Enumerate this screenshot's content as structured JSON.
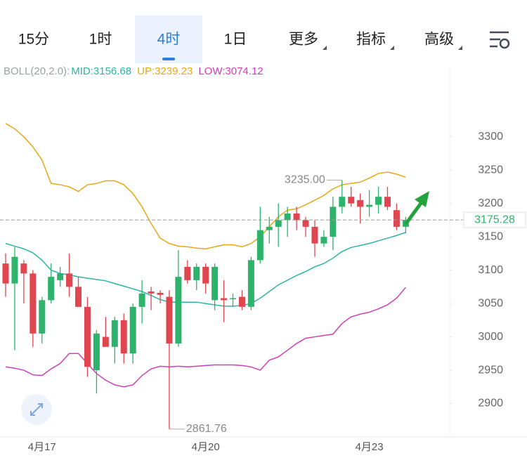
{
  "tabs": [
    {
      "label": "15分"
    },
    {
      "label": "1时"
    },
    {
      "label": "4时",
      "selected": true
    },
    {
      "label": "1日"
    },
    {
      "label": "更多",
      "menu": true
    },
    {
      "label": "指标",
      "menu": true
    },
    {
      "label": "高级",
      "menu": true
    }
  ],
  "indicator": {
    "name": "BOLL(20,2.0):",
    "items": [
      {
        "label": "MID:3156.68",
        "color": "#2bb5a6"
      },
      {
        "label": "UP:3239.23",
        "color": "#e6a817"
      },
      {
        "label": "LOW:3074.12",
        "color": "#cc3fb8"
      }
    ]
  },
  "chart_data": {
    "type": "candlestick",
    "categories": [
      null,
      null,
      null,
      null,
      "4月17",
      null,
      null,
      null,
      null,
      null,
      null,
      null,
      null,
      null,
      null,
      null,
      null,
      null,
      null,
      null,
      null,
      null,
      "4月20",
      null,
      null,
      null,
      null,
      null,
      null,
      null,
      null,
      null,
      null,
      null,
      null,
      null,
      null,
      null,
      null,
      null,
      "4月23",
      null,
      null,
      null,
      null
    ],
    "open": [
      3110,
      3080,
      3110,
      3095,
      3005,
      3055,
      3085,
      3095,
      3075,
      3045,
      2950,
      3000,
      2985,
      3025,
      2975,
      3045,
      3068,
      3066,
      3060,
      2990,
      3105,
      3085,
      3105,
      3055,
      3058,
      3058,
      3060,
      3045,
      3115,
      3160,
      3165,
      3175,
      3185,
      3175,
      3165,
      3140,
      3150,
      3195,
      3210,
      3205,
      3195,
      3198,
      3210,
      3190,
      3165
    ],
    "high": [
      3125,
      3135,
      3115,
      3100,
      3060,
      3110,
      3105,
      3125,
      3090,
      3060,
      3010,
      3030,
      3030,
      3035,
      3050,
      3085,
      3075,
      3070,
      3070,
      3130,
      3115,
      3110,
      3110,
      3110,
      3085,
      3065,
      3070,
      3120,
      3195,
      3180,
      3200,
      3195,
      3195,
      3180,
      3175,
      3160,
      3210,
      3235.0,
      3225,
      3215,
      3220,
      3225,
      3225,
      3200,
      3180
    ],
    "low": [
      3060,
      2980,
      3050,
      2985,
      2990,
      3050,
      3075,
      3060,
      3045,
      2940,
      2915,
      2985,
      2960,
      2960,
      2960,
      3020,
      3040,
      3050,
      2861.76,
      2985,
      3080,
      3070,
      3065,
      3040,
      3022,
      3045,
      3040,
      3040,
      3110,
      3140,
      3135,
      3150,
      3160,
      3150,
      3120,
      3135,
      3130,
      3185,
      3195,
      3170,
      3180,
      3185,
      3190,
      3160,
      3155
    ],
    "close": [
      3080,
      3120,
      3095,
      3005,
      3055,
      3090,
      3095,
      3075,
      3045,
      2955,
      3005,
      2985,
      3025,
      2975,
      3045,
      3065,
      3065,
      3063,
      2990,
      3090,
      3085,
      3105,
      3080,
      3105,
      3055,
      3058,
      3045,
      3115,
      3160,
      3165,
      3175,
      3185,
      3175,
      3165,
      3140,
      3150,
      3195,
      3210,
      3200,
      3195,
      3198,
      3210,
      3195,
      3165,
      3175.28
    ],
    "close_label": "3175.28",
    "high_label": "3235.00",
    "low_label": "2861.76",
    "up_color": "#2db36b",
    "down_color": "#e0464f",
    "series": [
      {
        "color": "#2bb5a6",
        "values": [
          3140,
          3136,
          3132,
          3126,
          3115,
          3100,
          3095,
          3093,
          3090,
          3088,
          3086,
          3084,
          3080,
          3076,
          3072,
          3068,
          3062,
          3056,
          3052,
          3052,
          3052,
          3052,
          3050,
          3048,
          3046,
          3046,
          3047,
          3050,
          3058,
          3068,
          3078,
          3085,
          3092,
          3098,
          3105,
          3110,
          3118,
          3128,
          3134,
          3137,
          3140,
          3144,
          3148,
          3152,
          3156.68
        ]
      },
      {
        "color": "#e6a817",
        "values": [
          3320,
          3312,
          3300,
          3285,
          3265,
          3230,
          3228,
          3225,
          3218,
          3228,
          3230,
          3234,
          3234,
          3228,
          3215,
          3195,
          3170,
          3148,
          3140,
          3136,
          3135,
          3133,
          3132,
          3135,
          3138,
          3138,
          3135,
          3140,
          3150,
          3165,
          3180,
          3190,
          3192,
          3198,
          3205,
          3212,
          3222,
          3228,
          3230,
          3232,
          3238,
          3245,
          3247,
          3244,
          3239.23
        ]
      },
      {
        "color": "#cc3fb8",
        "values": [
          2955,
          2953,
          2950,
          2943,
          2942,
          2952,
          2960,
          2975,
          2975,
          2960,
          2945,
          2935,
          2928,
          2925,
          2928,
          2942,
          2952,
          2956,
          2955,
          2956,
          2955,
          2956,
          2957,
          2958,
          2958,
          2958,
          2957,
          2955,
          2950,
          2965,
          2970,
          2980,
          2990,
          2998,
          3000,
          3002,
          3004,
          3020,
          3030,
          3034,
          3037,
          3042,
          3048,
          3058,
          3074.12
        ]
      }
    ],
    "ylim": [
      2850,
      3405
    ],
    "yticks": [
      2900,
      2950,
      3000,
      3050,
      3100,
      3150,
      3200,
      3250,
      3300
    ]
  }
}
